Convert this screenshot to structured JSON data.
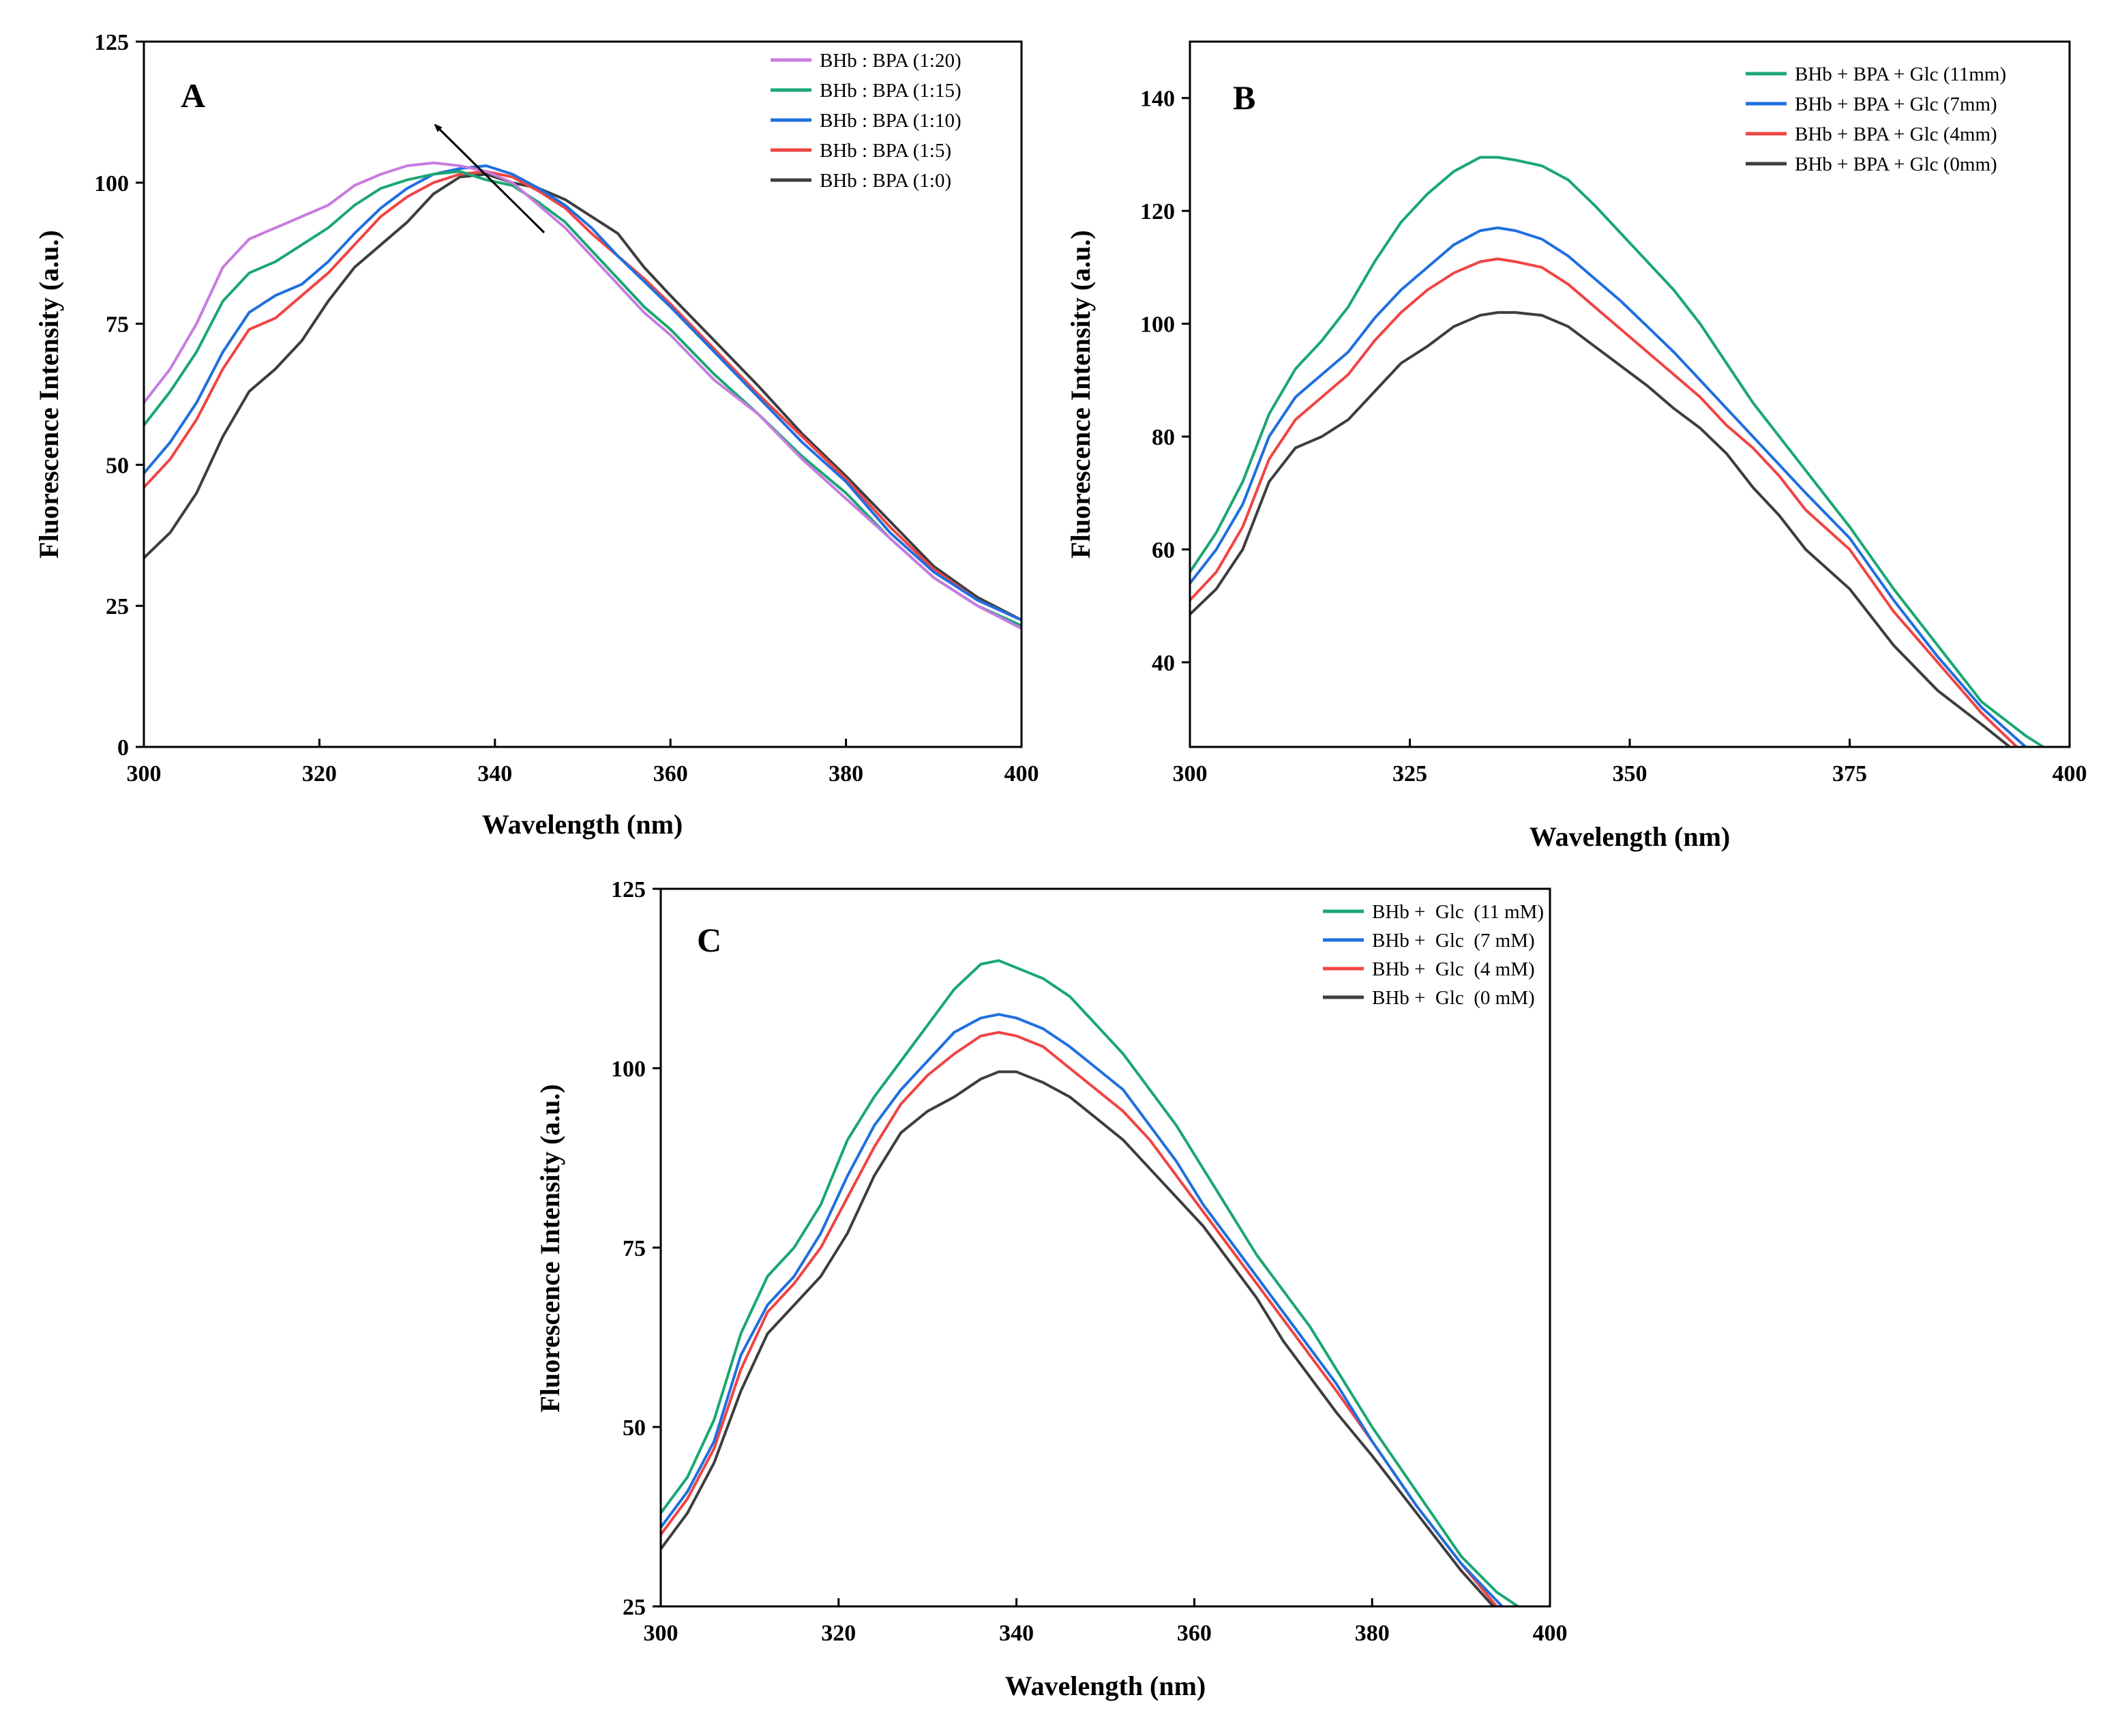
{
  "chart_data": [
    {
      "panel": "A",
      "type": "line",
      "xlabel": "Wavelength (nm)",
      "ylabel": "Fluorescence Intensity (a.u.)",
      "xlim": [
        300,
        400
      ],
      "ylim": [
        0,
        125
      ],
      "xticks": [
        300,
        320,
        340,
        360,
        380,
        400
      ],
      "yticks": [
        0,
        25,
        50,
        75,
        100,
        125
      ],
      "legend_position": "top-right",
      "annotation": "arrow indicating increasing BPA ratio",
      "series": [
        {
          "name": "BHb : BPA (1:20)",
          "color": "#c77ce0",
          "x": [
            300,
            303,
            306,
            309,
            312,
            315,
            318,
            321,
            324,
            327,
            330,
            333,
            336,
            339,
            342,
            345,
            348,
            351,
            354,
            357,
            360,
            365,
            370,
            375,
            380,
            385,
            390,
            395,
            400
          ],
          "y": [
            61,
            67,
            75,
            85,
            90,
            92,
            94,
            96,
            99.5,
            101.5,
            103,
            103.5,
            103,
            102,
            100,
            96,
            92,
            87,
            82,
            77,
            73,
            65,
            59,
            51,
            44,
            37,
            30,
            25,
            21
          ]
        },
        {
          "name": "BHb : BPA (1:15)",
          "color": "#1aa772",
          "x": [
            300,
            303,
            306,
            309,
            312,
            315,
            318,
            321,
            324,
            327,
            330,
            333,
            336,
            339,
            342,
            345,
            348,
            351,
            354,
            357,
            360,
            365,
            370,
            375,
            380,
            385,
            390,
            395,
            400
          ],
          "y": [
            57,
            63,
            70,
            79,
            84,
            86,
            89,
            92,
            96,
            99,
            100.5,
            101.5,
            102,
            100.5,
            99.5,
            96.5,
            93,
            88,
            83,
            78,
            74,
            66,
            59,
            51.5,
            45,
            37,
            30,
            25,
            21.5
          ]
        },
        {
          "name": "BHb : BPA (1:10)",
          "color": "#1f6fdf",
          "x": [
            300,
            303,
            306,
            309,
            312,
            315,
            318,
            321,
            324,
            327,
            330,
            333,
            336,
            339,
            342,
            345,
            348,
            351,
            354,
            357,
            360,
            365,
            370,
            375,
            380,
            385,
            390,
            395,
            400
          ],
          "y": [
            48.5,
            54,
            61,
            70,
            77,
            80,
            82,
            86,
            91,
            95.5,
            99,
            101.5,
            102.5,
            103,
            101.5,
            99,
            96,
            92,
            87,
            82.5,
            78,
            70,
            62,
            54,
            47,
            38,
            31,
            26,
            22.5
          ]
        },
        {
          "name": "BHb : BPA (1:5)",
          "color": "#f04444",
          "x": [
            300,
            303,
            306,
            309,
            312,
            315,
            318,
            321,
            324,
            327,
            330,
            333,
            336,
            339,
            342,
            345,
            348,
            351,
            354,
            357,
            360,
            365,
            370,
            375,
            380,
            385,
            390,
            395,
            400
          ],
          "y": [
            46,
            51,
            58,
            67,
            74,
            76,
            80,
            84,
            89,
            94,
            97.5,
            100,
            101.5,
            102,
            101,
            98.5,
            95.5,
            91,
            87,
            83,
            78.5,
            70.5,
            62.5,
            55,
            47.5,
            39,
            31.5,
            26,
            22.5
          ]
        },
        {
          "name": "BHb : BPA (1:0)",
          "color": "#3d3d3d",
          "x": [
            300,
            303,
            306,
            309,
            312,
            315,
            318,
            321,
            324,
            327,
            330,
            333,
            336,
            339,
            342,
            345,
            348,
            351,
            354,
            357,
            360,
            365,
            370,
            375,
            380,
            385,
            390,
            395,
            400
          ],
          "y": [
            33.5,
            38,
            45,
            55,
            63,
            67,
            72,
            79,
            85,
            89,
            93,
            98,
            101,
            101.5,
            100,
            99,
            97,
            94,
            91,
            85,
            80,
            72,
            64,
            55.5,
            48,
            40,
            32,
            26.5,
            22.5
          ]
        }
      ]
    },
    {
      "panel": "B",
      "type": "line",
      "xlabel": "Wavelength (nm)",
      "ylabel": "Fluorescence Intensity (a.u.)",
      "xlim": [
        300,
        400
      ],
      "ylim": [
        25,
        150
      ],
      "xticks": [
        300,
        325,
        350,
        375,
        400
      ],
      "yticks": [
        40,
        60,
        80,
        100,
        120,
        140
      ],
      "legend_position": "top-right",
      "series": [
        {
          "name": "BHb + BPA + Glc (11mm)",
          "color": "#1aa772",
          "x": [
            300,
            303,
            306,
            309,
            312,
            315,
            318,
            321,
            324,
            327,
            330,
            333,
            335,
            337,
            340,
            343,
            346,
            349,
            352,
            355,
            358,
            361,
            364,
            367,
            370,
            375,
            380,
            385,
            390,
            395,
            397
          ],
          "y": [
            56,
            63,
            72,
            84,
            92,
            97,
            103,
            111,
            118,
            123,
            127,
            129.5,
            129.5,
            129,
            128,
            125.5,
            121,
            116,
            111,
            106,
            100,
            93,
            86,
            80,
            74,
            64,
            53,
            43,
            33,
            27,
            25
          ]
        },
        {
          "name": "BHb + BPA + Glc (7mm)",
          "color": "#1f6fdf",
          "x": [
            300,
            303,
            306,
            309,
            312,
            315,
            318,
            321,
            324,
            327,
            330,
            333,
            335,
            337,
            340,
            343,
            346,
            349,
            352,
            355,
            358,
            361,
            364,
            367,
            370,
            375,
            380,
            385,
            390,
            395
          ],
          "y": [
            54,
            60,
            68,
            80,
            87,
            91,
            95,
            101,
            106,
            110,
            114,
            116.5,
            117,
            116.5,
            115,
            112,
            108,
            104,
            99.5,
            95,
            90,
            85,
            80,
            75,
            70,
            62,
            51,
            41,
            32,
            25
          ]
        },
        {
          "name": "BHb + BPA + Glc (4mm)",
          "color": "#f04444",
          "x": [
            300,
            303,
            306,
            309,
            312,
            315,
            318,
            321,
            324,
            327,
            330,
            333,
            335,
            337,
            340,
            343,
            346,
            349,
            352,
            355,
            358,
            361,
            364,
            367,
            370,
            375,
            380,
            385,
            390,
            394
          ],
          "y": [
            51,
            56,
            64,
            76,
            83,
            87,
            91,
            97,
            102,
            106,
            109,
            111,
            111.5,
            111,
            110,
            107,
            103,
            99,
            95,
            91,
            87,
            82,
            78,
            73,
            67,
            60,
            49,
            40,
            31,
            25
          ]
        },
        {
          "name": "BHb + BPA + Glc (0mm)",
          "color": "#3d3d3d",
          "x": [
            300,
            303,
            306,
            309,
            312,
            315,
            318,
            321,
            324,
            327,
            330,
            333,
            335,
            337,
            340,
            343,
            346,
            349,
            352,
            355,
            358,
            361,
            364,
            367,
            370,
            375,
            380,
            385,
            390,
            394
          ],
          "y": [
            48.5,
            53,
            60,
            72,
            78,
            80,
            83,
            88,
            93,
            96,
            99.5,
            101.5,
            102,
            102,
            101.5,
            99.5,
            96,
            92.5,
            89,
            85,
            81.5,
            77,
            71,
            66,
            60,
            53,
            43,
            35,
            29,
            24
          ]
        }
      ]
    },
    {
      "panel": "C",
      "type": "line",
      "xlabel": "Wavelength (nm)",
      "ylabel": "Fluorescence Intensity (a.u.)",
      "xlim": [
        300,
        400
      ],
      "ylim": [
        25,
        125
      ],
      "xticks": [
        300,
        320,
        340,
        360,
        380,
        400
      ],
      "yticks": [
        25,
        50,
        75,
        100,
        125
      ],
      "legend_position": "top-right",
      "series": [
        {
          "name": "BHb +  Glc  (11 mM)",
          "color": "#1aa772",
          "x": [
            300,
            303,
            306,
            309,
            312,
            315,
            318,
            321,
            324,
            327,
            330,
            333,
            336,
            338,
            340,
            343,
            346,
            349,
            352,
            355,
            358,
            361,
            364,
            367,
            370,
            373,
            376,
            380,
            385,
            390,
            394,
            397
          ],
          "y": [
            38,
            43,
            51,
            63,
            71,
            75,
            81,
            90,
            96,
            101,
            106,
            111,
            114.5,
            115,
            114,
            112.5,
            110,
            106,
            102,
            97,
            92,
            86,
            80,
            74,
            69,
            64,
            58,
            50,
            41,
            32,
            27,
            24.5
          ]
        },
        {
          "name": "BHb +  Glc  (7 mM)",
          "color": "#1f6fdf",
          "x": [
            300,
            303,
            306,
            309,
            312,
            315,
            318,
            321,
            324,
            327,
            330,
            333,
            336,
            338,
            340,
            343,
            346,
            349,
            352,
            355,
            358,
            361,
            364,
            367,
            370,
            373,
            376,
            380,
            385,
            390,
            395
          ],
          "y": [
            36,
            41,
            48,
            60,
            67,
            71,
            77,
            85,
            92,
            97,
            101,
            105,
            107,
            107.5,
            107,
            105.5,
            103,
            100,
            97,
            92,
            87,
            81,
            76,
            71,
            66,
            61,
            56,
            48,
            39,
            31,
            24.5
          ]
        },
        {
          "name": "BHb +  Glc  (4 mM)",
          "color": "#f04444",
          "x": [
            300,
            303,
            306,
            309,
            312,
            315,
            318,
            321,
            324,
            327,
            330,
            333,
            336,
            338,
            340,
            343,
            346,
            349,
            352,
            355,
            358,
            361,
            364,
            367,
            370,
            373,
            376,
            380,
            385,
            390,
            394
          ],
          "y": [
            35,
            40,
            47,
            58,
            66,
            70,
            75,
            82,
            89,
            95,
            99,
            102,
            104.5,
            105,
            104.5,
            103,
            100,
            97,
            94,
            90,
            85,
            80,
            75,
            70,
            65,
            60,
            55,
            48,
            39,
            31,
            25
          ]
        },
        {
          "name": "BHb +  Glc  (0 mM)",
          "color": "#3d3d3d",
          "x": [
            300,
            303,
            306,
            309,
            312,
            315,
            318,
            321,
            324,
            327,
            330,
            333,
            336,
            338,
            340,
            343,
            346,
            349,
            352,
            355,
            358,
            361,
            364,
            367,
            370,
            373,
            376,
            380,
            385,
            390,
            394
          ],
          "y": [
            33,
            38,
            45,
            55,
            63,
            67,
            71,
            77,
            85,
            91,
            94,
            96,
            98.5,
            99.5,
            99.5,
            98,
            96,
            93,
            90,
            86,
            82,
            78,
            73,
            68,
            62,
            57,
            52,
            46,
            38,
            30,
            24.5
          ]
        }
      ]
    }
  ]
}
